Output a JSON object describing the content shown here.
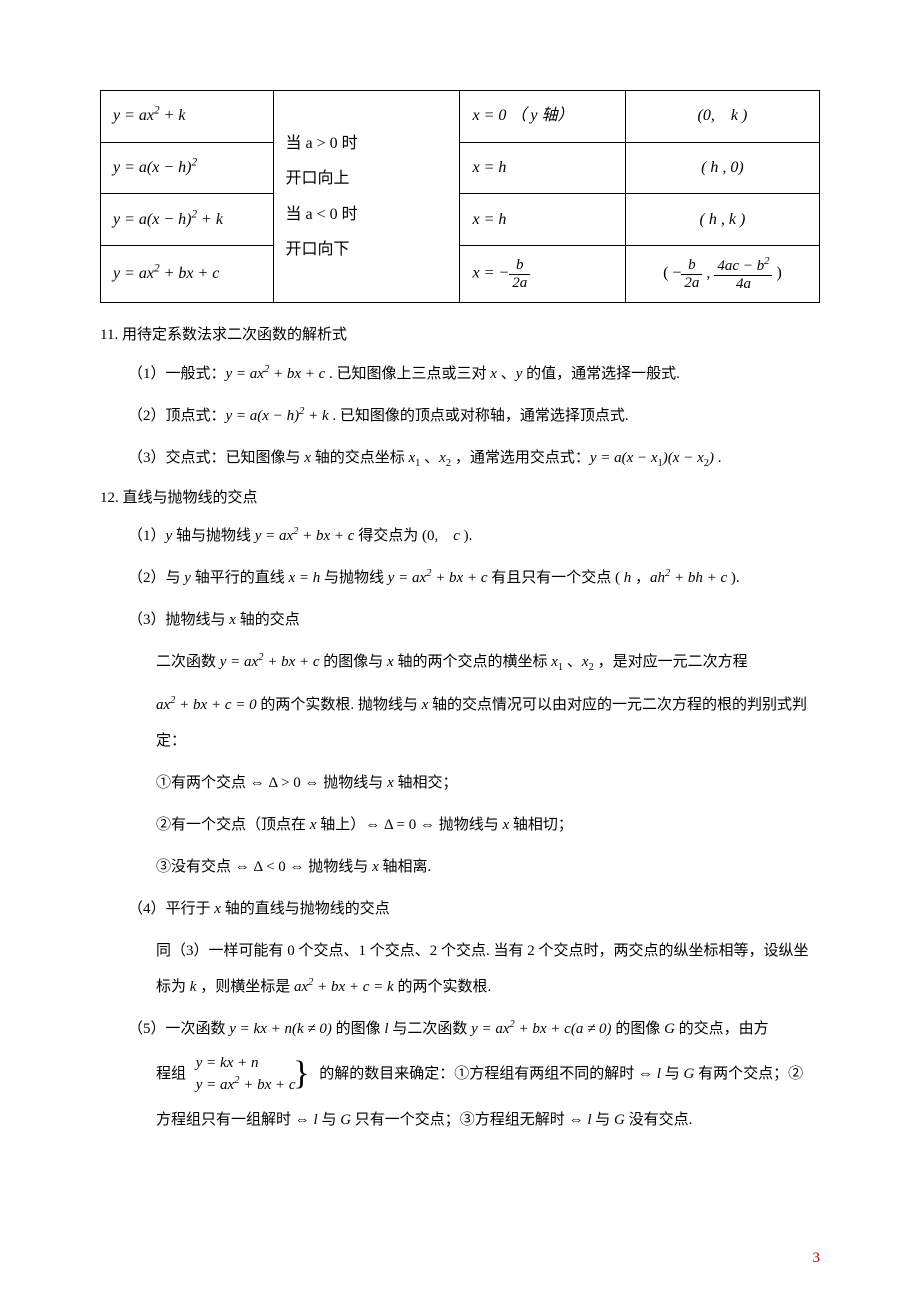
{
  "table": {
    "open_cell": "当 a > 0 时<br>开口向上<br>当 a < 0 时<br>开口向下",
    "rows": [
      {
        "func": "y = ax<sup>2</sup> + k",
        "axis": "x = 0 （ y 轴）",
        "vertex": "(0,　k )"
      },
      {
        "func": "y = a(x − h)<sup>2</sup>",
        "axis": "x = h",
        "vertex": "( h , 0)"
      },
      {
        "func": "y = a(x − h)<sup>2</sup> + k",
        "axis": "x = h",
        "vertex": "( h , k )"
      },
      {
        "func": "y = ax<sup>2</sup> + bx + c",
        "axis": "FRAC_AXIS",
        "vertex": "FRAC_VERT"
      }
    ]
  },
  "sec11": {
    "title": "11. 用待定系数法求二次函数的解析式",
    "p1": "（1）一般式：<span class='math'>y = ax<sup>2</sup> + bx + c</span> . 已知图像上三点或三对 <span class='math'>x</span> 、<span class='math'>y</span> 的值，通常选择一般式.",
    "p2": "（2）顶点式：<span class='math'>y = a(x − h)<sup>2</sup> + k</span> . 已知图像的顶点或对称轴，通常选择顶点式.",
    "p3": "（3）交点式：已知图像与 <span class='math'>x</span> 轴的交点坐标 <span class='math'>x</span><sub>1</sub> 、<span class='math'>x</span><sub>2</sub> ，通常选用交点式：<span class='math'>y = a(x − x<sub>1</sub>)(x − x<sub>2</sub>)</span> ."
  },
  "sec12": {
    "title": "12. 直线与抛物线的交点",
    "p1": "（1）<span class='math'>y</span> 轴与抛物线 <span class='math'>y = ax<sup>2</sup> + bx + c</span> 得交点为 (0,　<span class='math'>c</span> ).",
    "p2": "（2）与 <span class='math'>y</span> 轴平行的直线 <span class='math'>x = h</span> 与抛物线 <span class='math'>y = ax<sup>2</sup> + bx + c</span> 有且只有一个交点 ( <span class='math'>h</span> ，<span class='math'>ah<sup>2</sup> + bh + c</span> ).",
    "p3": "（3）抛物线与 <span class='math'>x</span> 轴的交点",
    "p3a": "二次函数 <span class='math'>y = ax<sup>2</sup> + bx + c</span> 的图像与 <span class='math'>x</span> 轴的两个交点的横坐标 <span class='math'>x</span><sub>1</sub> 、<span class='math'>x</span><sub>2</sub> ，是对应一元二次方程",
    "p3b": "<span class='math'>ax<sup>2</sup> + bx + c = 0</span> 的两个实数根. 抛物线与 <span class='math'>x</span> 轴的交点情况可以由对应的一元二次方程的根的判别式判定：",
    "p3c": "①有两个交点 <span class='mathup'>⇔ Δ &gt; 0 ⇔</span> 抛物线与 <span class='math'>x</span> 轴相交；",
    "p3d": "②有一个交点（顶点在 <span class='math'>x</span> 轴上）<span class='mathup'>⇔ Δ = 0 ⇔</span> 抛物线与 <span class='math'>x</span> 轴相切；",
    "p3e": "③没有交点 <span class='mathup'>⇔ Δ &lt; 0 ⇔</span> 抛物线与 <span class='math'>x</span> 轴相离.",
    "p4": "（4）平行于 <span class='math'>x</span> 轴的直线与抛物线的交点",
    "p4a": "同（3）一样可能有 0 个交点、1 个交点、2 个交点. 当有 2 个交点时，两交点的纵坐标相等，设纵坐标为 <span class='math'>k</span> ，则横坐标是 <span class='math'>ax<sup>2</sup> + bx + c = k</span> 的两个实数根.",
    "p5a": "（5）一次函数 <span class='math'>y = kx + n(k ≠ 0)</span> 的图像 <span class='math'>l</span> 与二次函数 <span class='math'>y = ax<sup>2</sup> + bx + c(a ≠ 0)</span> 的图像 <span class='math'>G</span> 的交点，由方",
    "p5b_pre": "程组",
    "p5b_sys1": "y = kx + n",
    "p5b_sys2": "y = ax<sup>2</sup> + bx + c",
    "p5b_post": "的解的数目来确定：①方程组有两组不同的解时 <span class='mathup'>⇔</span> <span class='math'>l</span> 与 <span class='math'>G</span> 有两个交点；②",
    "p5c": "方程组只有一组解时 <span class='mathup'>⇔</span> <span class='math'>l</span> 与 <span class='math'>G</span> 只有一个交点；③方程组无解时 <span class='mathup'>⇔</span> <span class='math'>l</span> 与 <span class='math'>G</span> 没有交点."
  },
  "page_number": "3"
}
